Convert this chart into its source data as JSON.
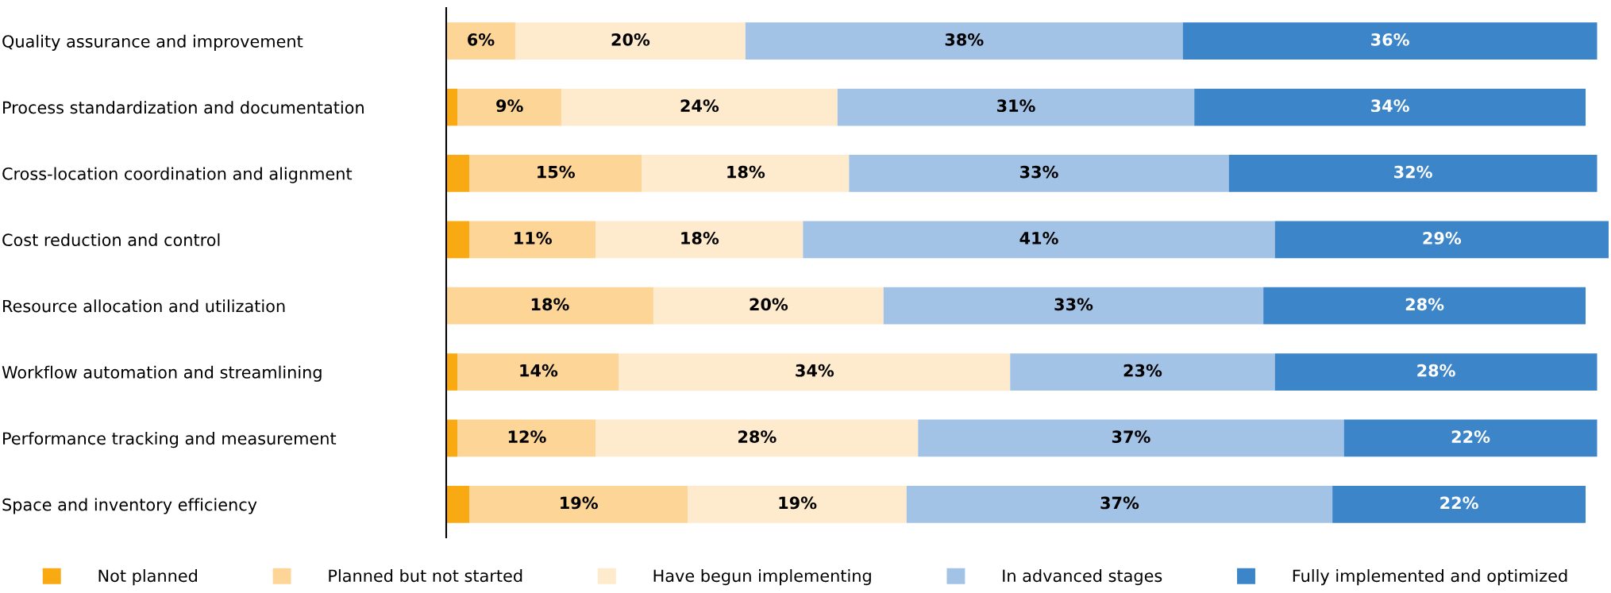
{
  "chart_data": {
    "type": "bar",
    "orientation": "horizontal",
    "stacked": true,
    "categories": [
      "Quality assurance and improvement",
      "Process standardization and documentation",
      "Cross-location coordination and alignment",
      "Cost reduction and control",
      "Resource allocation and utilization",
      "Workflow automation and streamlining",
      "Performance tracking and measurement",
      "Space and inventory efficiency"
    ],
    "series": [
      {
        "name": "Not planned",
        "color": "#f9a912",
        "values": [
          0,
          1,
          2,
          2,
          0,
          1,
          1,
          2
        ],
        "value_labels": [
          null,
          null,
          null,
          null,
          null,
          null,
          null,
          null
        ]
      },
      {
        "name": "Planned but not started",
        "color": "#fdd597",
        "values": [
          6,
          9,
          15,
          11,
          18,
          14,
          12,
          19
        ],
        "value_labels": [
          "6%",
          "9%",
          "15%",
          "11%",
          "18%",
          "14%",
          "12%",
          "19%"
        ]
      },
      {
        "name": "Have begun implementing",
        "color": "#feeacc",
        "values": [
          20,
          24,
          18,
          18,
          20,
          34,
          28,
          19
        ],
        "value_labels": [
          "20%",
          "24%",
          "18%",
          "18%",
          "20%",
          "34%",
          "28%",
          "19%"
        ]
      },
      {
        "name": "In advanced stages",
        "color": "#a3c3e6",
        "values": [
          38,
          31,
          33,
          41,
          33,
          23,
          37,
          37
        ],
        "value_labels": [
          "38%",
          "31%",
          "33%",
          "41%",
          "33%",
          "23%",
          "37%",
          "37%"
        ]
      },
      {
        "name": "Fully implemented and optimized",
        "color": "#3d85c9",
        "values": [
          36,
          34,
          32,
          29,
          28,
          28,
          22,
          22
        ],
        "value_labels": [
          "36%",
          "34%",
          "32%",
          "29%",
          "28%",
          "28%",
          "22%",
          "22%"
        ]
      }
    ],
    "relative": false,
    "legend": "bottom",
    "grid": false
  }
}
